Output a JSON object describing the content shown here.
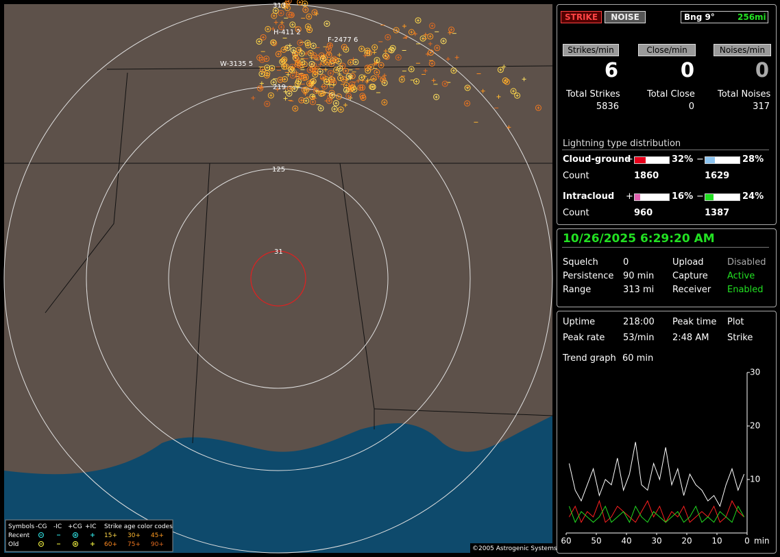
{
  "map": {
    "labels": [
      "313",
      "H-411  2",
      "F-2477  6",
      "W-3135  5",
      "219",
      "125",
      "31"
    ],
    "legend": {
      "header": [
        "Symbols",
        "-CG",
        "-IC",
        "+CG",
        "+IC",
        "Strike age color codes"
      ],
      "rows": [
        {
          "label": "Recent",
          "ages": [
            "15+",
            "30+",
            "45+"
          ]
        },
        {
          "label": "Old",
          "ages": [
            "60+",
            "75+",
            "90+"
          ]
        }
      ]
    },
    "copyright": "©2005 Astrogenic Systems"
  },
  "header": {
    "strike": "STRIKE",
    "noise": "NOISE",
    "bearing": "Bng 9°",
    "range": "256mi"
  },
  "rates": [
    {
      "label": "Strikes/min",
      "value": 6
    },
    {
      "label": "Close/min",
      "value": 0
    },
    {
      "label": "Noises/min",
      "value": 0
    }
  ],
  "totals": [
    {
      "label": "Total Strikes",
      "value": 5836
    },
    {
      "label": "Total Close",
      "value": 0
    },
    {
      "label": "Total Noises",
      "value": 317
    }
  ],
  "distribution": {
    "title": "Lightning type distribution",
    "rows": [
      {
        "label": "Cloud-ground",
        "count_label": "Count",
        "items": [
          {
            "sign": "+",
            "percent": 32,
            "percent_label": "32%",
            "count": 1860,
            "color": "#e8001c"
          },
          {
            "sign": "−",
            "percent": 28,
            "percent_label": "28%",
            "count": 1629,
            "color": "#8cc4f0"
          }
        ]
      },
      {
        "label": "Intracloud",
        "count_label": "Count",
        "items": [
          {
            "sign": "+",
            "percent": 16,
            "percent_label": "16%",
            "count": 960,
            "color": "#e060b0"
          },
          {
            "sign": "−",
            "percent": 24,
            "percent_label": "24%",
            "count": 1387,
            "color": "#22dd22"
          }
        ]
      }
    ]
  },
  "status": {
    "datetime": "10/26/2025 6:29:20 AM",
    "rows": [
      [
        "Squelch",
        "0",
        "Upload",
        "Disabled"
      ],
      [
        "Persistence",
        "90 min",
        "Capture",
        "Active"
      ],
      [
        "Range",
        "313 mi",
        "Receiver",
        "Enabled"
      ]
    ]
  },
  "stats": {
    "rows": [
      [
        "Uptime",
        "218:00",
        "Peak time",
        "Plot"
      ],
      [
        "Peak rate",
        "53/min",
        "2:48 AM",
        "Strike"
      ]
    ],
    "trend_label": "Trend graph",
    "trend_value": "60 min"
  },
  "chart_data": {
    "type": "line",
    "x_label": "min",
    "x": [
      59,
      57,
      55,
      53,
      51,
      49,
      47,
      45,
      43,
      41,
      39,
      37,
      35,
      33,
      31,
      29,
      27,
      25,
      23,
      21,
      19,
      17,
      15,
      13,
      11,
      9,
      7,
      5,
      3,
      1
    ],
    "xlim": [
      60,
      0
    ],
    "xticks": [
      60,
      50,
      40,
      30,
      20,
      10,
      0
    ],
    "ylim": [
      0,
      30
    ],
    "yticks": [
      10,
      20,
      30
    ],
    "series": [
      {
        "color": "#ffffff",
        "values": [
          13,
          8,
          6,
          9,
          12,
          7,
          10,
          9,
          14,
          8,
          11,
          17,
          9,
          8,
          13,
          10,
          16,
          9,
          12,
          7,
          11,
          9,
          8,
          6,
          7,
          5,
          9,
          12,
          8,
          11
        ]
      },
      {
        "color": "#ff2020",
        "values": [
          3,
          5,
          2,
          4,
          3,
          6,
          2,
          3,
          5,
          4,
          3,
          2,
          4,
          6,
          3,
          5,
          2,
          4,
          3,
          5,
          2,
          3,
          4,
          3,
          5,
          2,
          3,
          6,
          4,
          3
        ]
      },
      {
        "color": "#22dd22",
        "values": [
          5,
          2,
          4,
          3,
          2,
          3,
          5,
          2,
          3,
          4,
          2,
          5,
          3,
          2,
          4,
          3,
          2,
          3,
          4,
          2,
          3,
          5,
          2,
          3,
          2,
          4,
          3,
          2,
          5,
          3
        ]
      }
    ]
  }
}
